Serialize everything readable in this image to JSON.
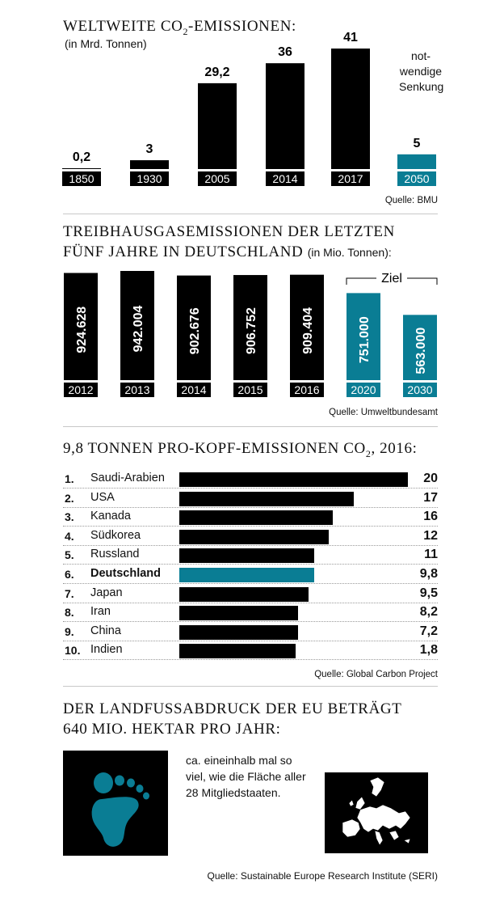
{
  "colors": {
    "black": "#000000",
    "teal": "#0a7d94"
  },
  "section1": {
    "title_main": "WELTWEITE CO",
    "title_sub": "2",
    "title_end": "-EMISSIONEN:",
    "unit": "(in Mrd. Tonnen)",
    "note_lines": [
      "not-",
      "wendige",
      "Senkung"
    ],
    "source": "Quelle: BMU"
  },
  "section2": {
    "title_line1": "TREIBHAUSGASEMISSIONEN DER LETZTEN",
    "title_line2": "FÜNF JAHRE IN DEUTSCHLAND",
    "unit": "(in Mio. Tonnen):",
    "target_label": "Ziel",
    "source": "Quelle: Umweltbundesamt"
  },
  "section3": {
    "title_main": "9,8 TONNEN PRO-KOPF-EMISSIONEN CO",
    "title_sub": "2",
    "title_end": ", 2016:",
    "source": "Quelle: Global Carbon Project"
  },
  "section4": {
    "title_line1": "DER LANDFUSSABDRUCK DER EU BETRÄGT",
    "title_line2": "640 MIO. HEKTAR PRO JAHR:",
    "text_lines": [
      "ca. eineinhalb mal so",
      "viel, wie die Fläche aller",
      "28 Mitgliedstaaten."
    ],
    "source": "Quelle: Sustainable Europe Research Institute (SERI)",
    "icons": [
      "footprint-icon",
      "europe-map-icon"
    ]
  },
  "chart_data": [
    {
      "type": "bar",
      "title": "WELTWEITE CO2-EMISSIONEN:",
      "ylabel": "(in Mrd. Tonnen)",
      "categories": [
        "1850",
        "1930",
        "2005",
        "2014",
        "2017",
        "2050"
      ],
      "values": [
        0.2,
        3,
        29.2,
        36,
        41,
        5
      ],
      "labels": [
        "0,2",
        "3",
        "29,2",
        "36",
        "41",
        "5"
      ],
      "highlight": [
        false,
        false,
        false,
        false,
        false,
        true
      ],
      "ylim": [
        0,
        41
      ]
    },
    {
      "type": "bar",
      "title": "TREIBHAUSGASEMISSIONEN DER LETZTEN FÜNF JAHRE IN DEUTSCHLAND (in Mio. Tonnen):",
      "categories": [
        "2012",
        "2013",
        "2014",
        "2015",
        "2016",
        "2020",
        "2030"
      ],
      "values": [
        924628,
        942004,
        902676,
        906752,
        909404,
        751000,
        563000
      ],
      "labels": [
        "924.628",
        "942.004",
        "902.676",
        "906.752",
        "909.404",
        "751.000",
        "563.000"
      ],
      "highlight": [
        false,
        false,
        false,
        false,
        false,
        true,
        true
      ]
    },
    {
      "type": "bar",
      "orientation": "horizontal",
      "title": "9,8 TONNEN PRO-KOPF-EMISSIONEN CO2, 2016:",
      "ranks": [
        "1.",
        "2.",
        "3.",
        "4.",
        "5.",
        "6.",
        "7.",
        "8.",
        "9.",
        "10."
      ],
      "categories": [
        "Saudi-Arabien",
        "USA",
        "Kanada",
        "Südkorea",
        "Russland",
        "Deutschland",
        "Japan",
        "Iran",
        "China",
        "Indien"
      ],
      "labels": [
        "20",
        "17",
        "16",
        "12",
        "11",
        "9,8",
        "9,5",
        "8,2",
        "7,2",
        "1,8"
      ],
      "values": [
        20,
        17,
        16,
        12,
        11,
        9.8,
        9.5,
        8.2,
        7.2,
        1.8
      ],
      "bar_extent": [
        20,
        15.3,
        13.4,
        13.1,
        11.8,
        11.8,
        11.3,
        10.4,
        10.4,
        10.2
      ],
      "highlight": [
        false,
        false,
        false,
        false,
        false,
        true,
        false,
        false,
        false,
        false
      ]
    }
  ]
}
